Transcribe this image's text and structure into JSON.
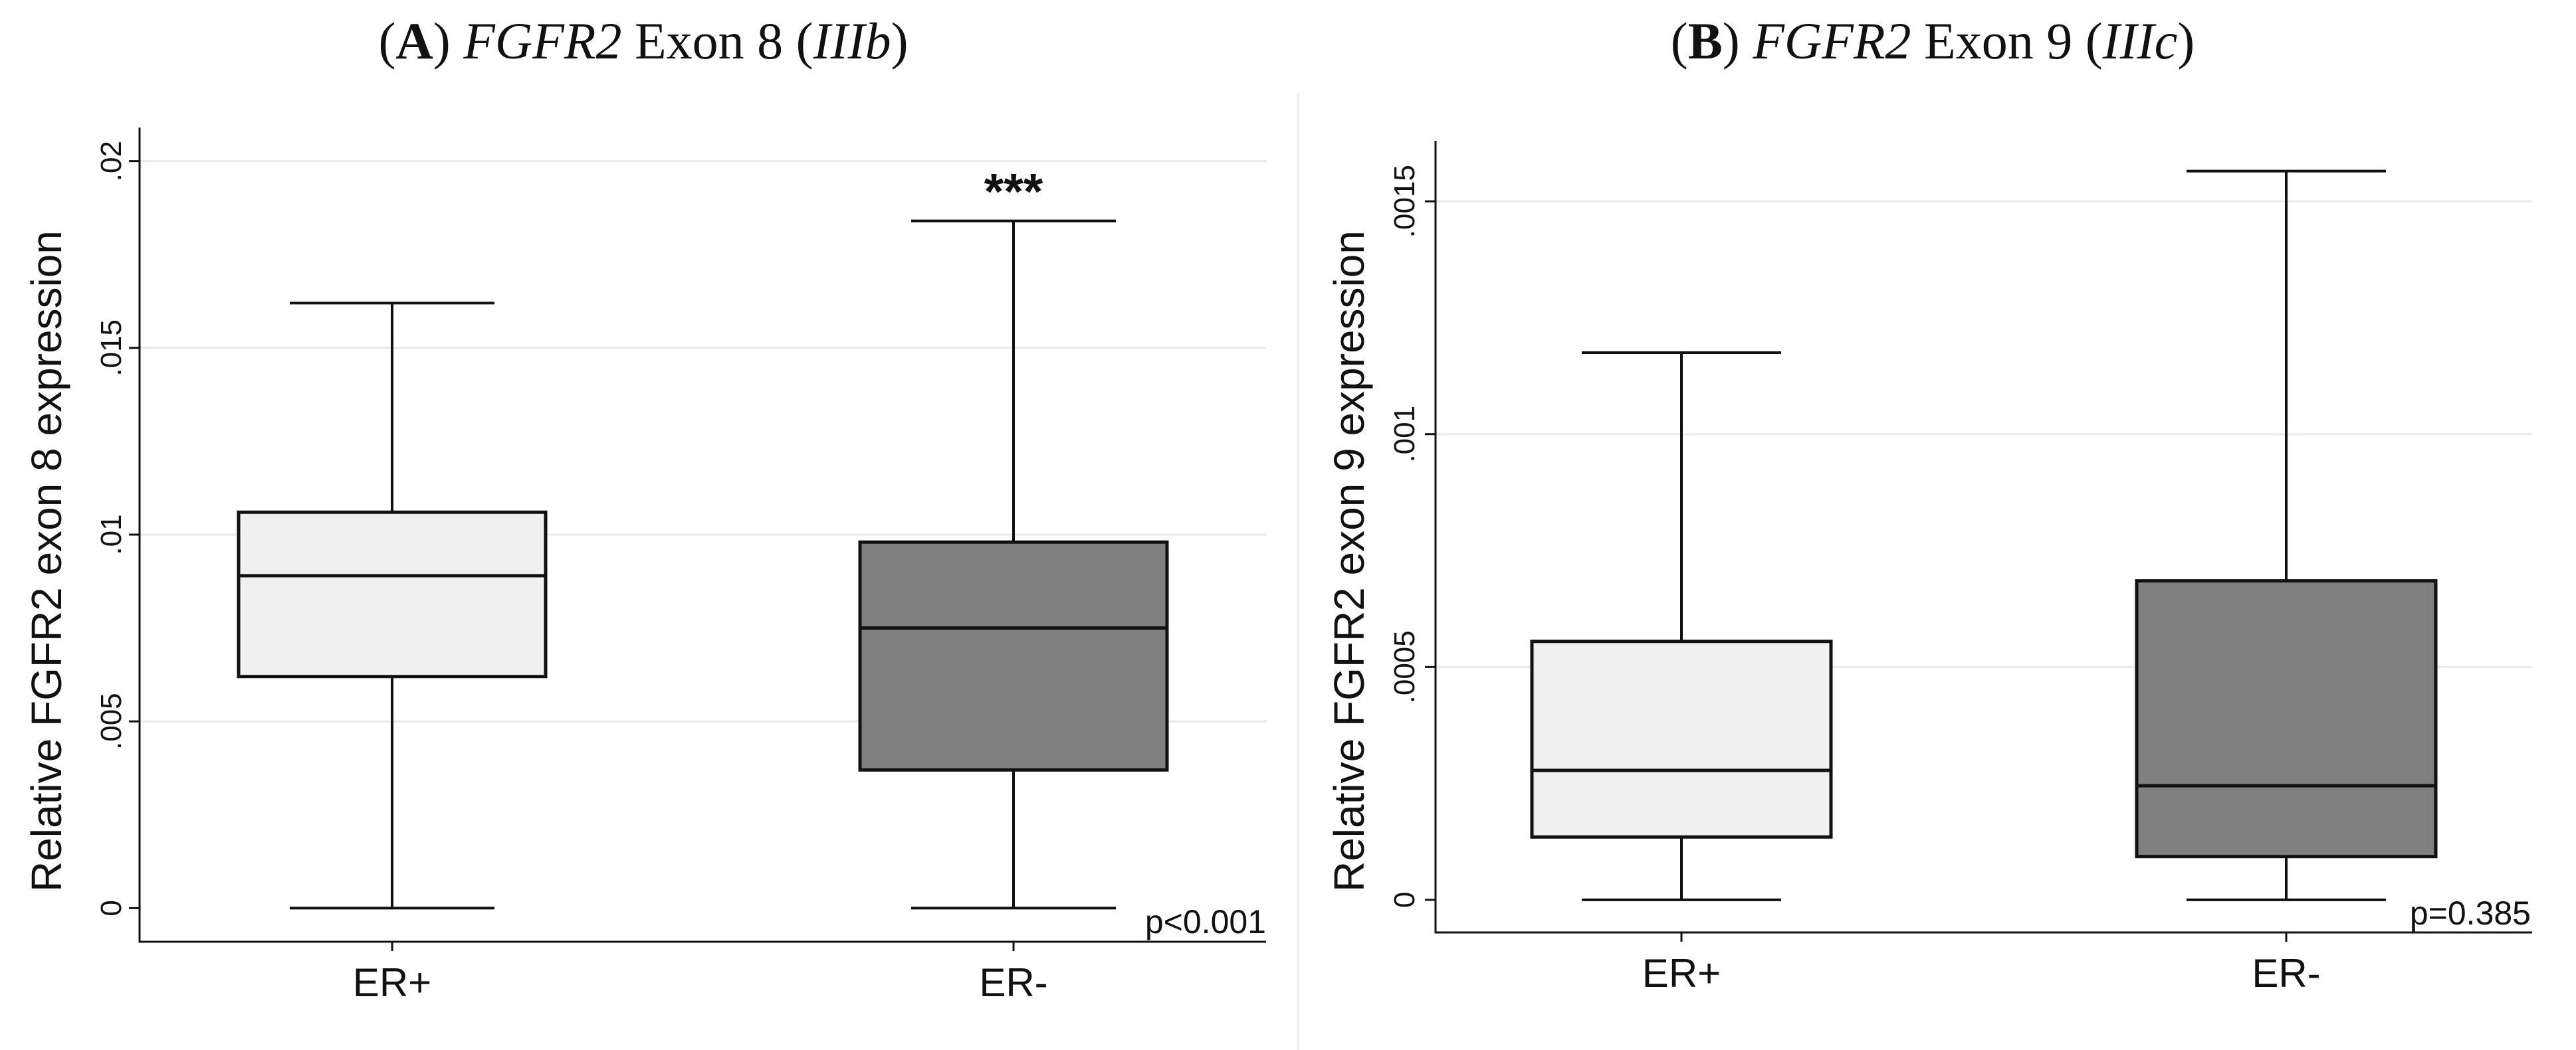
{
  "colors": {
    "er_pos_fill": "#f0f0f0",
    "er_neg_fill": "#808080",
    "grid": "#e3ecef",
    "stroke": "#111111"
  },
  "chart_data": [
    {
      "type": "box",
      "panel_letter": "A",
      "title_gene": "FGFR2",
      "title_mid": " Exon 8 (",
      "title_isoform": "IIIb",
      "title_close": ")",
      "ylabel": "Relative FGFR2 exon 8 expression",
      "ylim": [
        -0.0009,
        0.0209
      ],
      "yticks": [
        0,
        0.005,
        0.01,
        0.015,
        0.02
      ],
      "ytick_labels": [
        "0",
        ".005",
        ".01",
        ".015",
        ".02"
      ],
      "grid": true,
      "categories": [
        "ER+",
        "ER-"
      ],
      "boxes": [
        {
          "label": "ER+",
          "whisker_low": 0,
          "q1": 0.0062,
          "median": 0.0089,
          "q3": 0.0106,
          "whisker_high": 0.0162,
          "fill": "#f0f0f0"
        },
        {
          "label": "ER-",
          "whisker_low": 0,
          "q1": 0.0037,
          "median": 0.0075,
          "q3": 0.0098,
          "whisker_high": 0.0184,
          "fill": "#808080"
        }
      ],
      "significance": {
        "category": "ER-",
        "text": "***"
      },
      "p_value_text": "p<0.001"
    },
    {
      "type": "box",
      "panel_letter": "B",
      "title_gene": "FGFR2",
      "title_mid": " Exon 9 (",
      "title_isoform": "IIIc",
      "title_close": ")",
      "ylabel": "Relative FGFR2 exon 9 expression",
      "ylim": [
        -7e-05,
        0.00163
      ],
      "yticks": [
        0,
        0.0005,
        0.001,
        0.0015
      ],
      "ytick_labels": [
        "0",
        ".0005",
        ".001",
        ".0015"
      ],
      "grid": true,
      "categories": [
        "ER+",
        "ER-"
      ],
      "boxes": [
        {
          "label": "ER+",
          "whisker_low": 0,
          "q1": 0.000135,
          "median": 0.000278,
          "q3": 0.000555,
          "whisker_high": 0.001175,
          "fill": "#f0f0f0"
        },
        {
          "label": "ER-",
          "whisker_low": 0,
          "q1": 9.3e-05,
          "median": 0.000245,
          "q3": 0.000685,
          "whisker_high": 0.001565,
          "fill": "#808080"
        }
      ],
      "significance": null,
      "p_value_text": "p=0.385"
    }
  ]
}
